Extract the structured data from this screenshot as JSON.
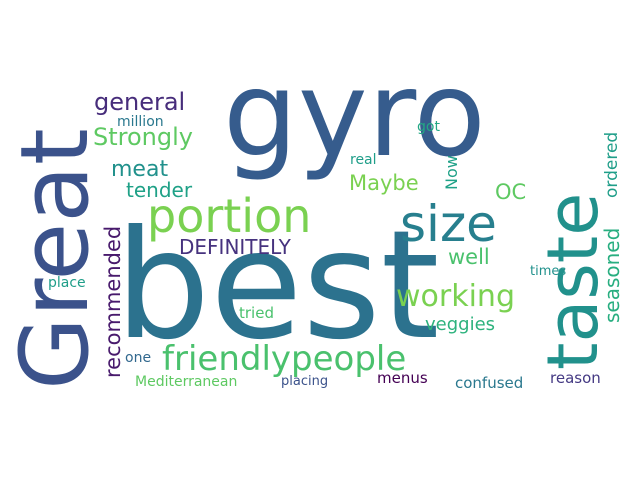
{
  "palette": {
    "dark_purple": "#46327e",
    "blue": "#365c8d",
    "slate_blue": "#3b528b",
    "teal": "#277f8e",
    "sea_green": "#1fa187",
    "green": "#4ac16d",
    "lime": "#7ad151",
    "deep_purple": "#440154"
  },
  "words": [
    {
      "text": "gyro",
      "color": "#365c8d"
    },
    {
      "text": "best",
      "color": "#2c728e"
    },
    {
      "text": "Great",
      "color": "#3b528b"
    },
    {
      "text": "taste",
      "color": "#21918c"
    },
    {
      "text": "portion",
      "color": "#7ad151"
    },
    {
      "text": "size",
      "color": "#277f8e"
    },
    {
      "text": "friendlypeople",
      "color": "#4ac16d"
    },
    {
      "text": "working",
      "color": "#7ad151"
    },
    {
      "text": "Strongly",
      "color": "#5ec962"
    },
    {
      "text": "general",
      "color": "#472d7b"
    },
    {
      "text": "meat",
      "color": "#21918c"
    },
    {
      "text": "tender",
      "color": "#1fa187"
    },
    {
      "text": "Maybe",
      "color": "#7ad151"
    },
    {
      "text": "DEFINITELY",
      "color": "#46327e"
    },
    {
      "text": "recommended",
      "color": "#481a6c"
    },
    {
      "text": "well",
      "color": "#4ac16d"
    },
    {
      "text": "veggies",
      "color": "#2db27d"
    },
    {
      "text": "seasoned",
      "color": "#28ae80"
    },
    {
      "text": "ordered",
      "color": "#1f9e89"
    },
    {
      "text": "OC",
      "color": "#5ec962"
    },
    {
      "text": "Now",
      "color": "#1fa187"
    },
    {
      "text": "got",
      "color": "#22a884"
    },
    {
      "text": "real",
      "color": "#1f9e89"
    },
    {
      "text": "million",
      "color": "#2a788e"
    },
    {
      "text": "times",
      "color": "#21918c"
    },
    {
      "text": "place",
      "color": "#1f9e89"
    },
    {
      "text": "tried",
      "color": "#4ac16d"
    },
    {
      "text": "one",
      "color": "#31688e"
    },
    {
      "text": "Mediterranean",
      "color": "#5ec962"
    },
    {
      "text": "placing",
      "color": "#3b528b"
    },
    {
      "text": "menus",
      "color": "#440154"
    },
    {
      "text": "confused",
      "color": "#2a788e"
    },
    {
      "text": "reason",
      "color": "#443983"
    }
  ]
}
